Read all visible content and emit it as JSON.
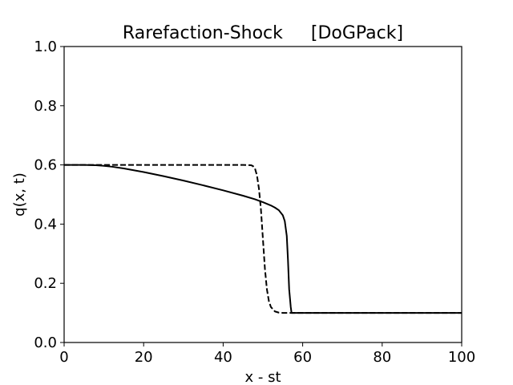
{
  "chart_data": {
    "type": "line",
    "title": "Rarefaction-Shock     [DoGPack]",
    "xlabel": "x - st",
    "ylabel": "q(x, t)",
    "xlim": [
      0,
      100
    ],
    "ylim": [
      0,
      1.0
    ],
    "x_ticks": [
      0,
      20,
      40,
      60,
      80,
      100
    ],
    "x_tick_labels": [
      "0",
      "20",
      "40",
      "60",
      "80",
      "100"
    ],
    "y_ticks": [
      0,
      0.2,
      0.4,
      0.6,
      0.8,
      1.0
    ],
    "y_tick_labels": [
      "0.0",
      "0.2",
      "0.4",
      "0.6",
      "0.8",
      "1.0"
    ],
    "grid": false,
    "legend": "none",
    "series": [
      {
        "style": "solid",
        "color": "#000000",
        "x": [
          0,
          5,
          8,
          10,
          12,
          15,
          20,
          25,
          30,
          35,
          40,
          45,
          48,
          50,
          52,
          53,
          54,
          55,
          55.5,
          56,
          56.3,
          56.6,
          57,
          57.2,
          60,
          70,
          80,
          90,
          100
        ],
        "y": [
          0.6,
          0.6,
          0.599,
          0.597,
          0.594,
          0.588,
          0.576,
          0.562,
          0.547,
          0.531,
          0.514,
          0.496,
          0.484,
          0.474,
          0.463,
          0.456,
          0.447,
          0.43,
          0.41,
          0.36,
          0.28,
          0.18,
          0.12,
          0.1,
          0.1,
          0.1,
          0.1,
          0.1,
          0.1
        ]
      },
      {
        "style": "dashed",
        "color": "#000000",
        "x": [
          0,
          10,
          20,
          30,
          40,
          45,
          47,
          47.5,
          48,
          48.5,
          49,
          49.5,
          50,
          50.5,
          51,
          51.5,
          52,
          53,
          54,
          55,
          60,
          70,
          80,
          90,
          100
        ],
        "y": [
          0.6,
          0.6,
          0.6,
          0.6,
          0.6,
          0.6,
          0.599,
          0.596,
          0.588,
          0.565,
          0.52,
          0.45,
          0.35,
          0.25,
          0.18,
          0.14,
          0.12,
          0.105,
          0.101,
          0.1,
          0.1,
          0.1,
          0.1,
          0.1,
          0.1
        ]
      }
    ]
  }
}
